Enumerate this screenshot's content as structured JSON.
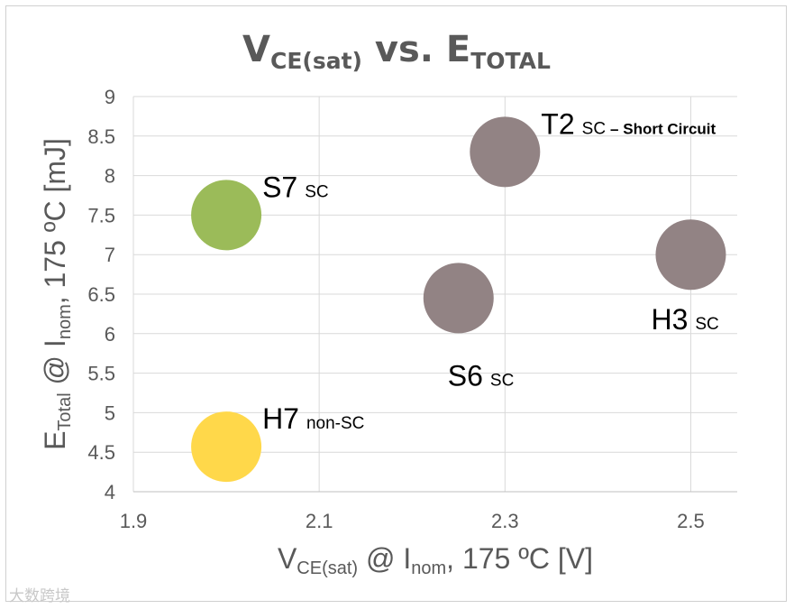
{
  "chart_data": {
    "type": "scatter",
    "title": {
      "main_a": "V",
      "sub_a": "CE(sat)",
      "mid": " vs. E",
      "sub_b": "TOTAL"
    },
    "xlabel": {
      "a": "V",
      "sub_a": "CE(sat)",
      "b": " @ I",
      "sub_b": "nom",
      "c": ", 175 ºC [V]"
    },
    "ylabel": {
      "a": "E",
      "sub_a": "Total",
      "b": " @ I",
      "sub_b": "nom",
      "c": ", 175 ºC [mJ]"
    },
    "xlim": [
      1.9,
      2.55
    ],
    "ylim": [
      4,
      9
    ],
    "xticks": [
      1.9,
      2.1,
      2.3,
      2.5
    ],
    "xtick_labels": [
      "1.9",
      "2.1",
      "2.3",
      "2.5"
    ],
    "yticks": [
      4,
      4.5,
      5,
      5.5,
      6,
      6.5,
      7,
      7.5,
      8,
      8.5,
      9
    ],
    "ytick_labels": [
      "4",
      "4.5",
      "5",
      "5.5",
      "6",
      "6.5",
      "7",
      "7.5",
      "8",
      "8.5",
      "9"
    ],
    "grid": true,
    "points": [
      {
        "id": "S7",
        "x": 2.0,
        "y": 7.5,
        "color": "#9BBB59",
        "label": "S7",
        "sub": "SC",
        "extra": "",
        "label_pos": "right"
      },
      {
        "id": "H7",
        "x": 2.0,
        "y": 4.57,
        "color": "#FFD84A",
        "label": "H7",
        "sub": "non-SC",
        "extra": "",
        "label_pos": "right"
      },
      {
        "id": "S6",
        "x": 2.25,
        "y": 6.45,
        "color": "#928384",
        "label": "S6",
        "sub": "SC",
        "extra": "",
        "label_pos": "below"
      },
      {
        "id": "T2",
        "x": 2.3,
        "y": 8.3,
        "color": "#928384",
        "label": "T2",
        "sub": "SC",
        "extra": "– Short Circuit",
        "label_pos": "right"
      },
      {
        "id": "H3",
        "x": 2.5,
        "y": 7.0,
        "color": "#928384",
        "label": "H3",
        "sub": "SC",
        "extra": "",
        "label_pos": "below-left"
      }
    ]
  },
  "watermark": "大数跨境"
}
